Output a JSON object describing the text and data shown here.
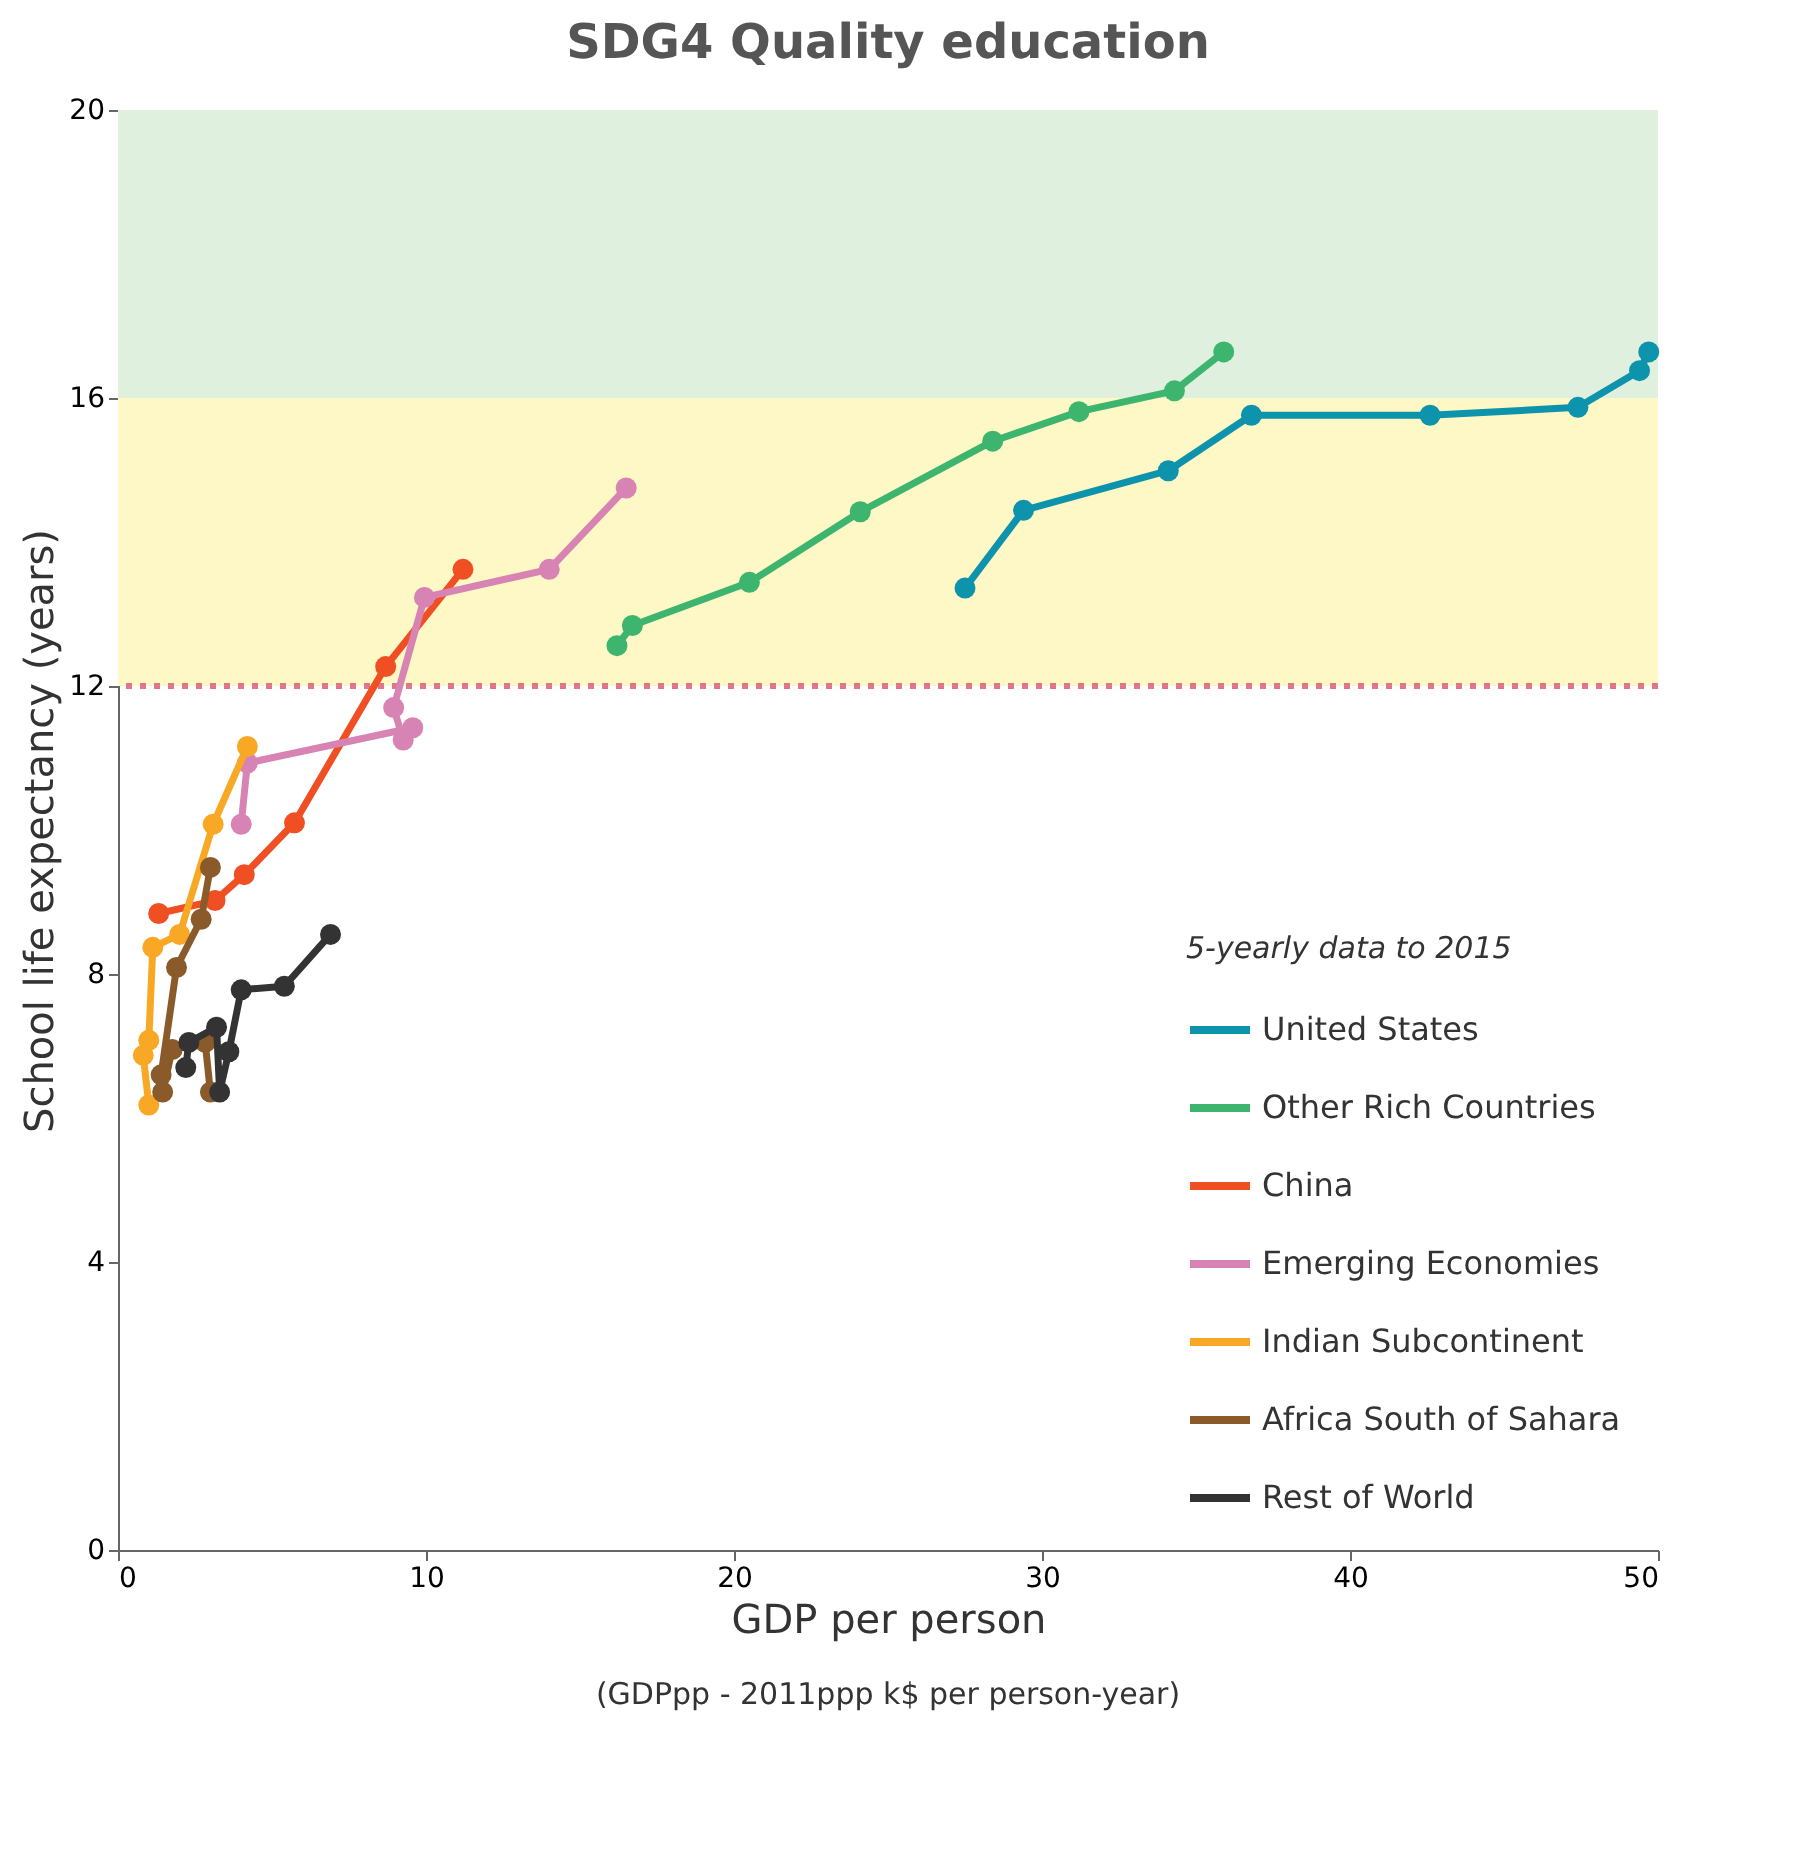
{
  "chart_data": {
    "type": "line",
    "title": "SDG4 Quality education",
    "xlabel": "GDP per person",
    "ylabel": "School life expectancy (years)",
    "legend_title": "5-yearly data to 2015",
    "annotations": [
      "(GDPpp - 2011ppp k$ per person-year)"
    ],
    "xlim": [
      0,
      50
    ],
    "xticks": [
      0,
      10,
      20,
      30,
      40,
      50
    ],
    "ylim": [
      0,
      20
    ],
    "yticks": [
      0,
      4,
      8,
      12,
      16,
      20
    ],
    "grid": false,
    "legend": "bottom right",
    "marker": "circle",
    "line_style": "solid",
    "bands": [
      {
        "axis": "y",
        "from": 16,
        "to": 20,
        "label": null,
        "color": "#dff0de"
      },
      {
        "axis": "y",
        "from": 12,
        "to": 16,
        "label": null,
        "color": "#fdf8c5"
      }
    ],
    "ref_lines": [
      {
        "axis": "y",
        "value": 12,
        "label": null,
        "color": "#e0768a",
        "line_style": "dotted"
      }
    ],
    "series": [
      {
        "name": "United States",
        "color": "#0e93ad",
        "x": [
          27.5,
          29.4,
          34.1,
          36.8,
          42.6,
          47.4,
          49.4,
          49.7
        ],
        "values": [
          13.36,
          14.44,
          14.99,
          15.76,
          15.76,
          15.87,
          16.38,
          16.64
        ]
      },
      {
        "name": "Other Rich Countries",
        "color": "#3db56f",
        "x": [
          16.2,
          16.7,
          20.5,
          24.1,
          28.4,
          31.2,
          34.3,
          35.9
        ],
        "values": [
          12.56,
          12.84,
          13.44,
          14.42,
          15.4,
          15.81,
          16.1,
          16.64
        ]
      },
      {
        "name": "China",
        "color": "#f04e23",
        "x": [
          1.32,
          3.15,
          4.1,
          5.73,
          8.69,
          11.2
        ],
        "values": [
          8.84,
          9.02,
          9.38,
          10.1,
          12.27,
          13.62
        ]
      },
      {
        "name": "Emerging Economies",
        "color": "#d783b3",
        "x": [
          4.0,
          4.2,
          9.57,
          9.26,
          8.95,
          9.95,
          14.0,
          16.5
        ],
        "values": [
          10.08,
          10.93,
          11.42,
          11.25,
          11.7,
          13.23,
          13.62,
          14.75
        ]
      },
      {
        "name": "Indian Subcontinent",
        "color": "#f9a825",
        "x": [
          1.0,
          0.82,
          1.0,
          1.13,
          2.0,
          3.09,
          4.2
        ],
        "values": [
          6.18,
          6.87,
          7.08,
          8.37,
          8.55,
          10.08,
          11.16
        ]
      },
      {
        "name": "Africa South of Sahara",
        "color": "#8b5a2b",
        "x": [
          3.0,
          2.83,
          1.76,
          1.45,
          1.4,
          1.9,
          2.7,
          3.0
        ],
        "values": [
          6.36,
          7.05,
          6.95,
          6.36,
          6.6,
          8.09,
          8.76,
          9.48
        ]
      },
      {
        "name": "Rest of World",
        "color": "#333333",
        "x": [
          2.2,
          2.3,
          3.2,
          3.3,
          3.6,
          4.0,
          5.4,
          6.9
        ],
        "values": [
          6.7,
          7.05,
          7.26,
          6.36,
          6.92,
          7.78,
          7.83,
          8.55
        ]
      }
    ]
  }
}
